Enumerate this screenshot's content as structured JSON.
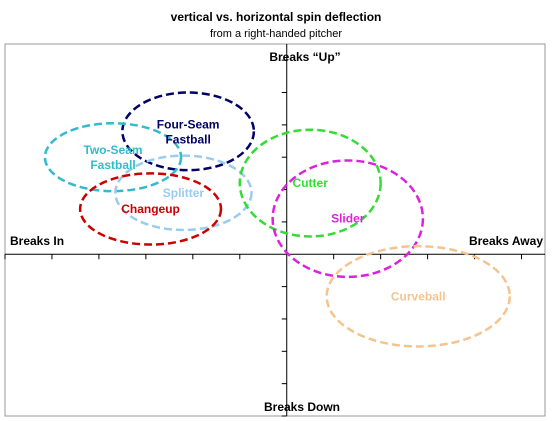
{
  "chart_data": {
    "type": "scatter",
    "title": "vertical vs. horizontal spin deflection",
    "subtitle": "from a right-handed pitcher",
    "axis_labels": {
      "top": "Breaks “Up”",
      "bottom": "Breaks Down",
      "left": "Breaks In",
      "right": "Breaks Away"
    },
    "xlim": [
      -6,
      5.5
    ],
    "ylim": [
      -5,
      6.5
    ],
    "grid": false,
    "ticks": {
      "x_step": 1,
      "y_step": 1
    },
    "series": [
      {
        "name": "Four-Seam\nFastball",
        "color": "#000066",
        "center": [
          -2.1,
          3.8
        ],
        "radius": [
          1.4,
          1.2
        ]
      },
      {
        "name": "Two-Seam\nFastball",
        "color": "#33BBCC",
        "center": [
          -3.7,
          3.0
        ],
        "radius": [
          1.45,
          1.05
        ]
      },
      {
        "name": "Splitter",
        "color": "#99CCEE",
        "center": [
          -2.2,
          1.9
        ],
        "radius": [
          1.45,
          1.15
        ]
      },
      {
        "name": "Changeup",
        "color": "#CC0000",
        "center": [
          -2.9,
          1.4
        ],
        "radius": [
          1.5,
          1.1
        ]
      },
      {
        "name": "Cutter",
        "color": "#33DD33",
        "center": [
          0.5,
          2.2
        ],
        "radius": [
          1.5,
          1.65
        ]
      },
      {
        "name": "Slider",
        "color": "#DD22DD",
        "center": [
          1.3,
          1.1
        ],
        "radius": [
          1.6,
          1.8
        ]
      },
      {
        "name": "Curveball",
        "color": "#F5C48E",
        "center": [
          2.8,
          -1.3
        ],
        "radius": [
          1.95,
          1.55
        ]
      }
    ]
  }
}
